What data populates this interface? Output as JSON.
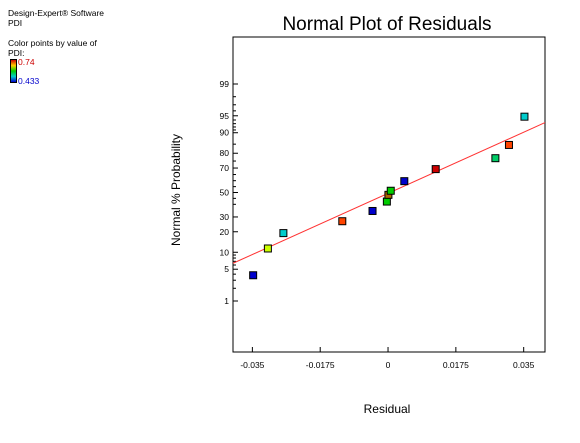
{
  "side_panel": {
    "software": "Design-Expert® Software",
    "response": "PDI",
    "color_caption": "Color points by value of",
    "color_caption_2": "PDI:",
    "color_high": "0.74",
    "color_low": "0.433",
    "colors": {
      "high": "#cc0000",
      "low": "#0000cc",
      "gradient": [
        "#cc0000",
        "#ffcc00",
        "#00cc00",
        "#00cccc",
        "#0000cc"
      ]
    }
  },
  "chart_data": {
    "type": "scatter",
    "title": "Normal Plot of Residuals",
    "xlabel": "Residual",
    "ylabel": "Normal % Probability",
    "xlim": [
      -0.04,
      0.0405
    ],
    "x_ticks": [
      -0.035,
      -0.0175,
      0,
      0.0175,
      0.035
    ],
    "x_tick_labels": [
      "-0.035",
      "-0.0175",
      "0",
      "0.0175",
      "0.035"
    ],
    "y_scale": "normal-probability",
    "y_ticks": [
      1,
      5,
      10,
      20,
      30,
      50,
      70,
      80,
      90,
      95,
      99
    ],
    "y_tick_labels": [
      "1",
      "5",
      "10",
      "20",
      "30",
      "50",
      "70",
      "80",
      "90",
      "95",
      "99"
    ],
    "y_minor_ticks": [
      2,
      3,
      4,
      6,
      7,
      8,
      9,
      40,
      45,
      55,
      60,
      65,
      75,
      85,
      91,
      92,
      93,
      94,
      96,
      97,
      98
    ],
    "grid": false,
    "reference_line": {
      "x": [
        -0.041,
        0.042
      ],
      "y": [
        6.0,
        94.0
      ],
      "color": "#ff3333"
    },
    "points": [
      {
        "x": -0.0348,
        "y": 3.8,
        "color": "#0000cc"
      },
      {
        "x": -0.031,
        "y": 11.5,
        "color": "#ccff00"
      },
      {
        "x": -0.027,
        "y": 19.2,
        "color": "#00cccc"
      },
      {
        "x": -0.0118,
        "y": 26.9,
        "color": "#ff4400"
      },
      {
        "x": -0.004,
        "y": 34.6,
        "color": "#0000cc"
      },
      {
        "x": -0.0003,
        "y": 42.3,
        "color": "#00cc00"
      },
      {
        "x": 0.0001,
        "y": 48.0,
        "color": "#aa6600"
      },
      {
        "x": 0.0007,
        "y": 51.5,
        "color": "#00cc00"
      },
      {
        "x": 0.0042,
        "y": 59.6,
        "color": "#0000cc"
      },
      {
        "x": 0.0123,
        "y": 69.2,
        "color": "#cc0000"
      },
      {
        "x": 0.0277,
        "y": 76.9,
        "color": "#00cc66"
      },
      {
        "x": 0.0312,
        "y": 84.6,
        "color": "#ff4400"
      },
      {
        "x": 0.0352,
        "y": 94.8,
        "color": "#00cccc"
      }
    ]
  }
}
